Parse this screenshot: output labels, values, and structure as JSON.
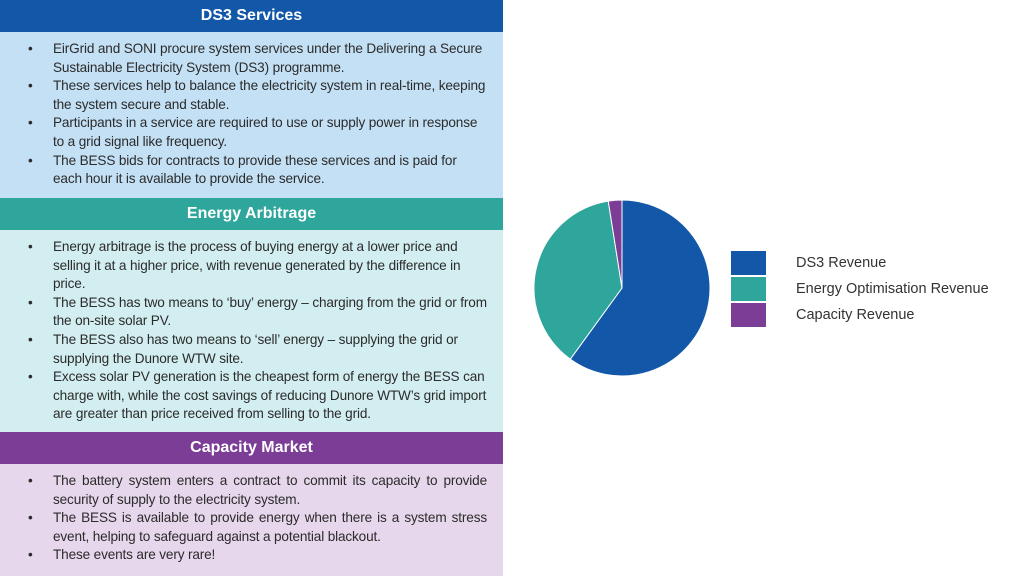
{
  "sections": [
    {
      "title": "DS3 Services",
      "bullets": [
        "EirGrid and SONI procure system services under the Delivering a Secure Sustainable Electricity System (DS3) programme.",
        "These services help to balance the electricity system in real-time, keeping the system secure and stable.",
        "Participants in a service are required to use or supply power in response to a grid signal like frequency.",
        "The BESS bids for contracts to provide these services and is paid for each hour it is available to provide the service."
      ]
    },
    {
      "title": "Energy Arbitrage",
      "bullets": [
        "Energy arbitrage is the process of buying energy at a lower price and selling it at a higher price, with revenue generated by the difference in price.",
        "The BESS has two means to ‘buy’ energy – charging from the grid or from the on-site solar PV.",
        "The BESS also has two means to ‘sell’ energy – supplying the grid or supplying the Dunore WTW site.",
        "Excess solar PV generation is the cheapest form of energy the BESS can charge with, while the cost savings of reducing Dunore WTW’s grid import are greater than price received from selling to the grid."
      ]
    },
    {
      "title": "Capacity Market",
      "bullets": [
        "The battery system enters a contract to commit its capacity to provide security of supply to the electricity system.",
        "The BESS is available to provide energy when there is a system stress event, helping to safeguard against a potential blackout.",
        "These events are very rare!"
      ]
    }
  ],
  "bullet_char": "•",
  "chart_data": {
    "type": "pie",
    "title": "",
    "categories": [
      "DS3 Revenue",
      "Energy Optimisation Revenue",
      "Capacity Revenue"
    ],
    "values": [
      60,
      37.5,
      2.5
    ],
    "colors": [
      "#1358a8",
      "#2ea69b",
      "#7c3d97"
    ],
    "legend_position": "right"
  }
}
